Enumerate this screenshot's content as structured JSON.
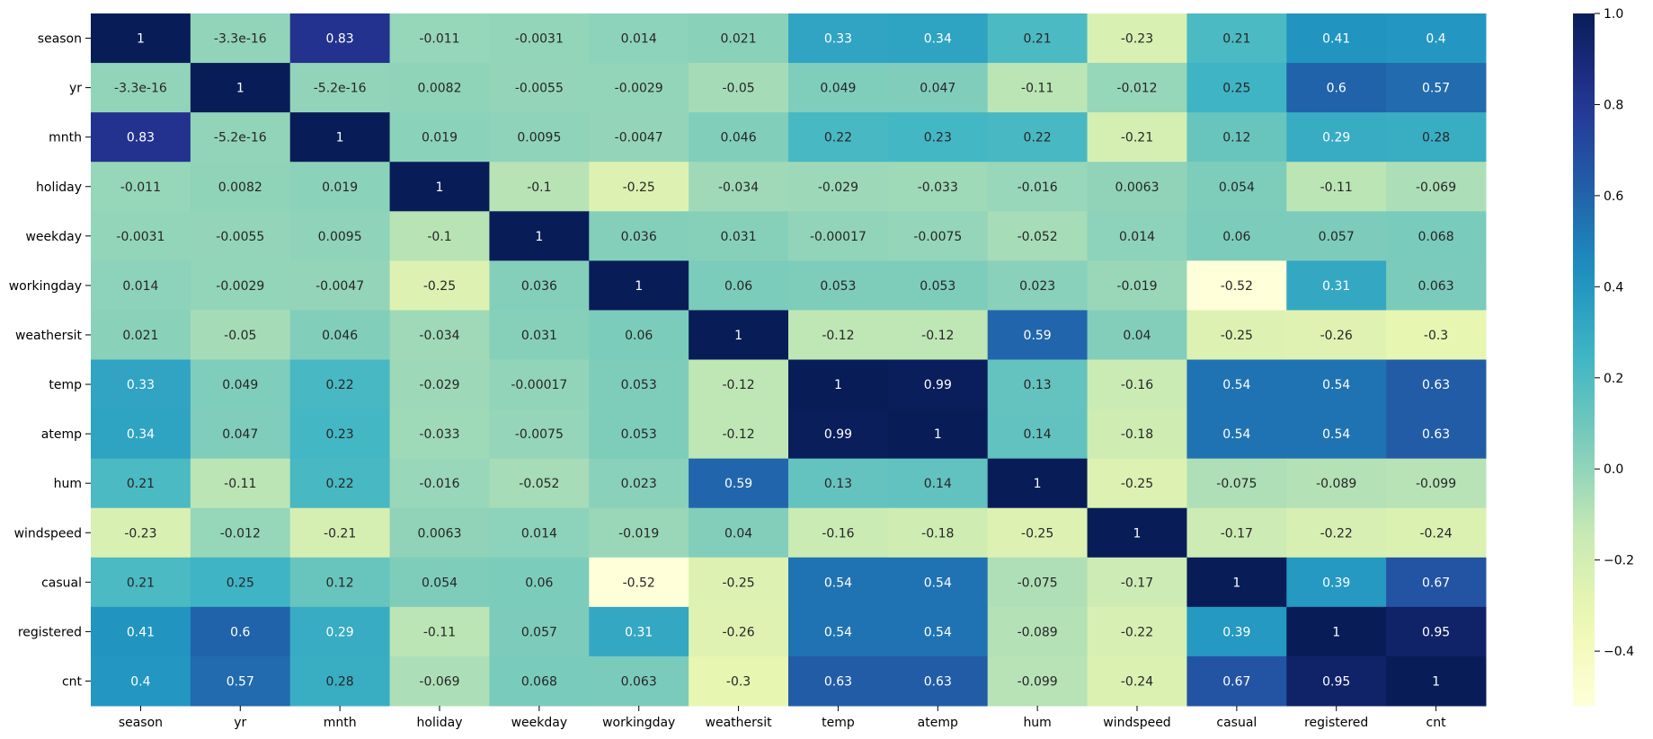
{
  "chart_data": {
    "type": "heatmap",
    "title": "",
    "xlabel": "",
    "ylabel": "",
    "x_labels": [
      "season",
      "yr",
      "mnth",
      "holiday",
      "weekday",
      "workingday",
      "weathersit",
      "temp",
      "atemp",
      "hum",
      "windspeed",
      "casual",
      "registered",
      "cnt"
    ],
    "y_labels": [
      "season",
      "yr",
      "mnth",
      "holiday",
      "weekday",
      "workingday",
      "weathersit",
      "temp",
      "atemp",
      "hum",
      "windspeed",
      "casual",
      "registered",
      "cnt"
    ],
    "cell_labels": [
      [
        "1",
        "-3.3e-16",
        "0.83",
        "-0.011",
        "-0.0031",
        "0.014",
        "0.021",
        "0.33",
        "0.34",
        "0.21",
        "-0.23",
        "0.21",
        "0.41",
        "0.4"
      ],
      [
        "-3.3e-16",
        "1",
        "-5.2e-16",
        "0.0082",
        "-0.0055",
        "-0.0029",
        "-0.05",
        "0.049",
        "0.047",
        "-0.11",
        "-0.012",
        "0.25",
        "0.6",
        "0.57"
      ],
      [
        "0.83",
        "-5.2e-16",
        "1",
        "0.019",
        "0.0095",
        "-0.0047",
        "0.046",
        "0.22",
        "0.23",
        "0.22",
        "-0.21",
        "0.12",
        "0.29",
        "0.28"
      ],
      [
        "-0.011",
        "0.0082",
        "0.019",
        "1",
        "-0.1",
        "-0.25",
        "-0.034",
        "-0.029",
        "-0.033",
        "-0.016",
        "0.0063",
        "0.054",
        "-0.11",
        "-0.069"
      ],
      [
        "-0.0031",
        "-0.0055",
        "0.0095",
        "-0.1",
        "1",
        "0.036",
        "0.031",
        "-0.00017",
        "-0.0075",
        "-0.052",
        "0.014",
        "0.06",
        "0.057",
        "0.068"
      ],
      [
        "0.014",
        "-0.0029",
        "-0.0047",
        "-0.25",
        "0.036",
        "1",
        "0.06",
        "0.053",
        "0.053",
        "0.023",
        "-0.019",
        "-0.52",
        "0.31",
        "0.063"
      ],
      [
        "0.021",
        "-0.05",
        "0.046",
        "-0.034",
        "0.031",
        "0.06",
        "1",
        "-0.12",
        "-0.12",
        "0.59",
        "0.04",
        "-0.25",
        "-0.26",
        "-0.3"
      ],
      [
        "0.33",
        "0.049",
        "0.22",
        "-0.029",
        "-0.00017",
        "0.053",
        "-0.12",
        "1",
        "0.99",
        "0.13",
        "-0.16",
        "0.54",
        "0.54",
        "0.63"
      ],
      [
        "0.34",
        "0.047",
        "0.23",
        "-0.033",
        "-0.0075",
        "0.053",
        "-0.12",
        "0.99",
        "1",
        "0.14",
        "-0.18",
        "0.54",
        "0.54",
        "0.63"
      ],
      [
        "0.21",
        "-0.11",
        "0.22",
        "-0.016",
        "-0.052",
        "0.023",
        "0.59",
        "0.13",
        "0.14",
        "1",
        "-0.25",
        "-0.075",
        "-0.089",
        "-0.099"
      ],
      [
        "-0.23",
        "-0.012",
        "-0.21",
        "0.0063",
        "0.014",
        "-0.019",
        "0.04",
        "-0.16",
        "-0.18",
        "-0.25",
        "1",
        "-0.17",
        "-0.22",
        "-0.24"
      ],
      [
        "0.21",
        "0.25",
        "0.12",
        "0.054",
        "0.06",
        "-0.52",
        "-0.25",
        "0.54",
        "0.54",
        "-0.075",
        "-0.17",
        "1",
        "0.39",
        "0.67"
      ],
      [
        "0.41",
        "0.6",
        "0.29",
        "-0.11",
        "0.057",
        "0.31",
        "-0.26",
        "0.54",
        "0.54",
        "-0.089",
        "-0.22",
        "0.39",
        "1",
        "0.95"
      ],
      [
        "0.4",
        "0.57",
        "0.28",
        "-0.069",
        "0.068",
        "0.063",
        "-0.3",
        "0.63",
        "0.63",
        "-0.099",
        "-0.24",
        "0.67",
        "0.95",
        "1"
      ]
    ],
    "value_range": [
      -0.52,
      1.0
    ],
    "colorscale": "YlGnBu",
    "colorbar": {
      "ticks": [
        1.0,
        0.8,
        0.6,
        0.4,
        0.2,
        0.0,
        -0.2,
        -0.4
      ],
      "tick_labels": [
        "1.0",
        "0.8",
        "0.6",
        "0.4",
        "0.2",
        "0.0",
        "−0.2",
        "−0.4"
      ]
    },
    "grid": false,
    "legend": "colorbar-right"
  }
}
